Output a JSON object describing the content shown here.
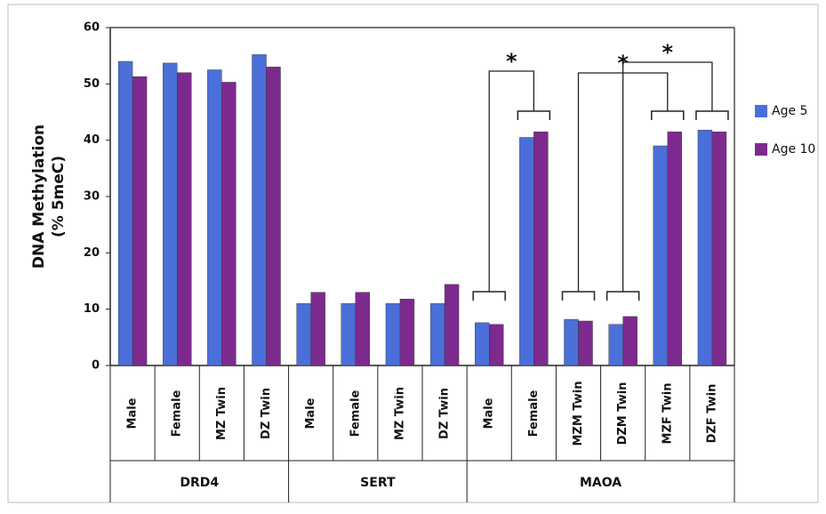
{
  "chart_data": {
    "type": "bar",
    "ylabel": [
      "DNA Methylation",
      "(% 5meC)"
    ],
    "categories": [
      "Male",
      "Female",
      "MZ Twin",
      "DZ Twin",
      "Male",
      "Female",
      "MZ Twin",
      "DZ Twin",
      "Male",
      "Female",
      "MZM Twin",
      "DZM Twin",
      "MZF Twin",
      "DZF Twin"
    ],
    "group_labels": [
      "DRD4",
      null,
      null,
      null,
      "SERT",
      null,
      null,
      null,
      "MAOA",
      null,
      null,
      null,
      null,
      null
    ],
    "series": [
      {
        "name": "Age 5",
        "color": "#4a6fd8",
        "values": [
          54,
          53.7,
          52.5,
          55.2,
          11,
          11,
          11,
          11,
          7.6,
          40.5,
          8.2,
          7.3,
          39,
          41.8
        ]
      },
      {
        "name": "Age 10",
        "color": "#7d2a8e",
        "values": [
          51.3,
          52,
          50.3,
          53,
          13,
          13,
          11.8,
          14.4,
          7.3,
          41.5,
          7.9,
          8.7,
          41.5,
          41.5
        ]
      }
    ],
    "ylim": [
      0,
      60
    ],
    "yticks": [
      0,
      10,
      20,
      30,
      40,
      50,
      60
    ],
    "annotations": [
      "*",
      "*",
      "*"
    ]
  }
}
